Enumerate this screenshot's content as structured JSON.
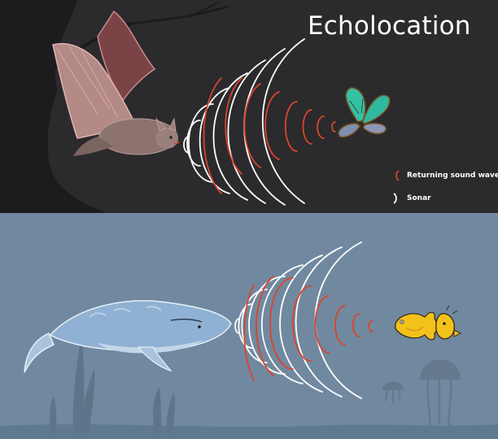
{
  "title": "Echolocation",
  "legend": {
    "returning_label": "Returning sound waves",
    "sonar_label": "Sonar"
  },
  "colors": {
    "top_background": "#2b2a2d",
    "bottom_background": "#7089a0",
    "returning_wave": "#d9452b",
    "sonar_wave": "#ffffff"
  },
  "icons": [
    "bat-illustration",
    "butterfly-illustration",
    "whale-illustration",
    "fish-illustration",
    "jellyfish-illustration",
    "tree-illustration",
    "seaweed-illustration"
  ]
}
